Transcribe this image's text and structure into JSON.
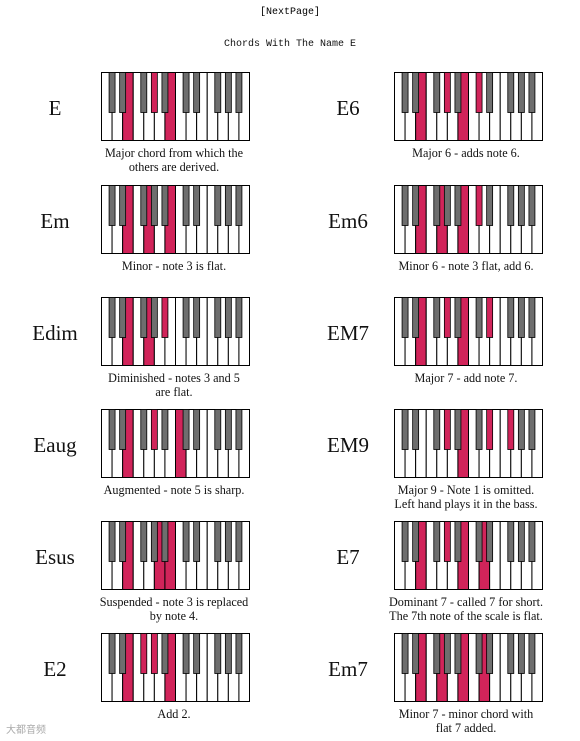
{
  "header": {
    "next_link": "[NextPage]",
    "title": "Chords With The Name E"
  },
  "colors": {
    "highlight": "#d1245a",
    "black_key": "#6e6e6e",
    "outline": "#000000"
  },
  "chords": [
    {
      "name": "E",
      "caption": [
        "Major chord from which the",
        "others are derived."
      ],
      "keys": [
        4,
        8,
        11
      ]
    },
    {
      "name": "E6",
      "caption": [
        "Major 6 - adds note 6."
      ],
      "keys": [
        4,
        8,
        11,
        13
      ]
    },
    {
      "name": "Em",
      "caption": [
        "Minor - note 3 is flat."
      ],
      "keys": [
        4,
        7,
        11
      ]
    },
    {
      "name": "Em6",
      "caption": [
        "Minor 6 - note 3 flat, add 6."
      ],
      "keys": [
        4,
        7,
        11,
        13
      ]
    },
    {
      "name": "Edim",
      "caption": [
        "Diminished - notes 3 and 5",
        "are flat."
      ],
      "keys": [
        4,
        7,
        10
      ]
    },
    {
      "name": "EM7",
      "caption": [
        "Major 7 - add note 7."
      ],
      "keys": [
        4,
        8,
        11,
        15
      ]
    },
    {
      "name": "Eaug",
      "caption": [
        "Augmented - note 5 is sharp."
      ],
      "keys": [
        4,
        8,
        12
      ]
    },
    {
      "name": "EM9",
      "caption": [
        "Major 9 - Note 1 is omitted.",
        "Left hand plays it in the bass."
      ],
      "keys": [
        8,
        11,
        15,
        18
      ]
    },
    {
      "name": "Esus",
      "caption": [
        "Suspended - note 3 is replaced",
        "by note 4."
      ],
      "keys": [
        4,
        9,
        11
      ]
    },
    {
      "name": "E7",
      "caption": [
        "Dominant 7 - called 7 for short.",
        "The 7th note of the scale is flat."
      ],
      "keys": [
        4,
        8,
        11,
        14
      ]
    },
    {
      "name": "E2",
      "caption": [
        "Add 2."
      ],
      "keys": [
        4,
        6,
        8,
        11
      ]
    },
    {
      "name": "Em7",
      "caption": [
        "Minor 7 - minor chord with",
        "flat 7 added."
      ],
      "keys": [
        4,
        7,
        11,
        14
      ]
    }
  ],
  "watermark": "大都音频"
}
